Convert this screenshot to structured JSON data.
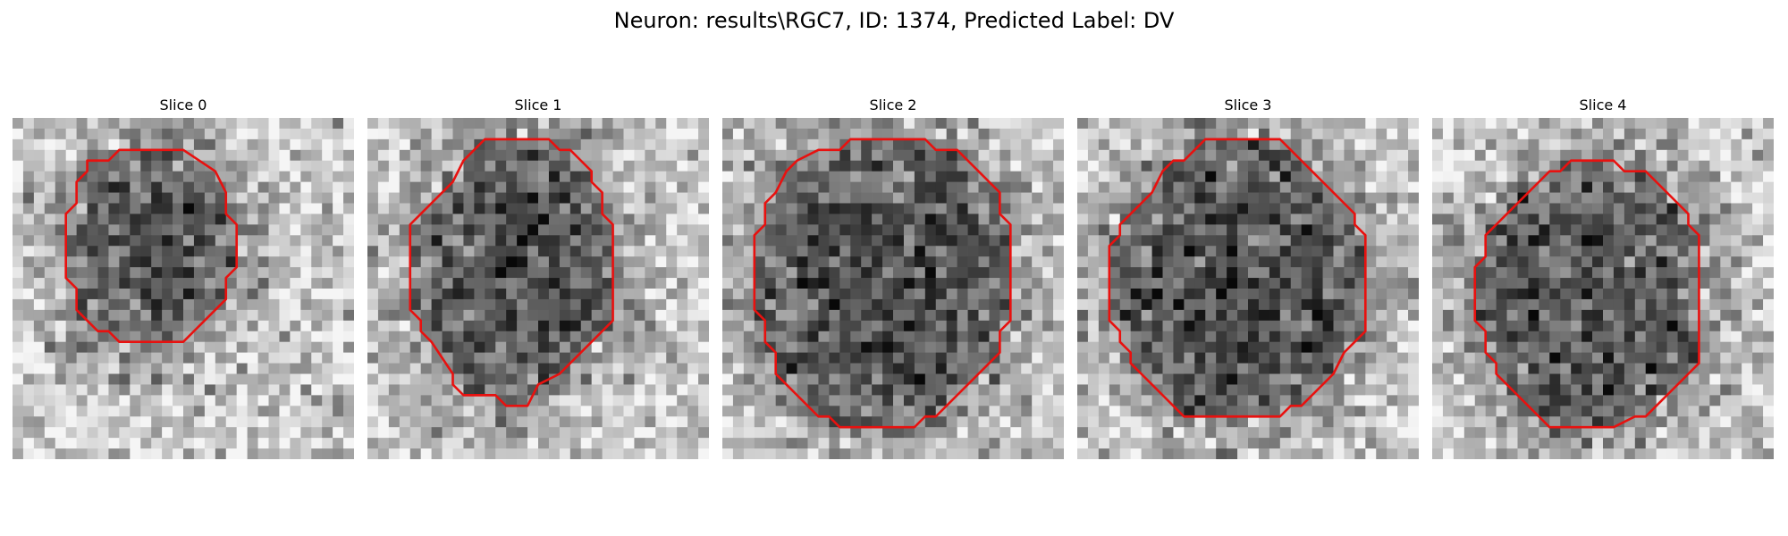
{
  "figure": {
    "title": "Neuron: results\\RGC7, ID: 1374, Predicted Label: DV"
  },
  "colors": {
    "background": "#ffffff",
    "contour": "#e8110f"
  },
  "image_grid_cells": 32,
  "panels": [
    {
      "title": "Slice 0",
      "contour_points": [
        [
          10,
          3
        ],
        [
          16,
          3
        ],
        [
          19,
          5
        ],
        [
          20,
          7
        ],
        [
          20,
          9
        ],
        [
          21,
          10
        ],
        [
          21,
          14
        ],
        [
          20,
          15
        ],
        [
          20,
          17
        ],
        [
          17,
          20
        ],
        [
          16,
          21
        ],
        [
          10,
          21
        ],
        [
          9,
          20
        ],
        [
          8,
          20
        ],
        [
          7,
          19
        ],
        [
          6,
          18
        ],
        [
          6,
          16
        ],
        [
          5,
          15
        ],
        [
          5,
          9
        ],
        [
          6,
          8
        ],
        [
          6,
          6
        ],
        [
          7,
          5
        ],
        [
          7,
          4
        ],
        [
          9,
          4
        ]
      ],
      "seed": 11
    },
    {
      "title": "Slice 1",
      "contour_points": [
        [
          11,
          2
        ],
        [
          17,
          2
        ],
        [
          18,
          3
        ],
        [
          19,
          3
        ],
        [
          20,
          4
        ],
        [
          21,
          5
        ],
        [
          21,
          6
        ],
        [
          22,
          7
        ],
        [
          22,
          9
        ],
        [
          23,
          10
        ],
        [
          23,
          19
        ],
        [
          22,
          20
        ],
        [
          21,
          21
        ],
        [
          19,
          23
        ],
        [
          18,
          24
        ],
        [
          16,
          25
        ],
        [
          15,
          27
        ],
        [
          13,
          27
        ],
        [
          12,
          26
        ],
        [
          9,
          26
        ],
        [
          8,
          25
        ],
        [
          8,
          24
        ],
        [
          6,
          21
        ],
        [
          5,
          20
        ],
        [
          5,
          19
        ],
        [
          4,
          18
        ],
        [
          4,
          10
        ],
        [
          5,
          9
        ],
        [
          6,
          8
        ],
        [
          7,
          7
        ],
        [
          8,
          6
        ],
        [
          9,
          4
        ],
        [
          10,
          3
        ]
      ],
      "seed": 23
    },
    {
      "title": "Slice 2",
      "contour_points": [
        [
          12,
          2
        ],
        [
          19,
          2
        ],
        [
          20,
          3
        ],
        [
          22,
          3
        ],
        [
          23,
          4
        ],
        [
          24,
          5
        ],
        [
          25,
          6
        ],
        [
          26,
          7
        ],
        [
          26,
          9
        ],
        [
          27,
          10
        ],
        [
          27,
          19
        ],
        [
          26,
          20
        ],
        [
          26,
          22
        ],
        [
          25,
          23
        ],
        [
          23,
          25
        ],
        [
          22,
          26
        ],
        [
          21,
          27
        ],
        [
          20,
          28
        ],
        [
          19,
          28
        ],
        [
          18,
          29
        ],
        [
          11,
          29
        ],
        [
          10,
          28
        ],
        [
          9,
          28
        ],
        [
          8,
          27
        ],
        [
          7,
          26
        ],
        [
          6,
          25
        ],
        [
          5,
          24
        ],
        [
          5,
          22
        ],
        [
          4,
          21
        ],
        [
          4,
          19
        ],
        [
          3,
          18
        ],
        [
          3,
          11
        ],
        [
          4,
          10
        ],
        [
          4,
          8
        ],
        [
          5,
          7
        ],
        [
          6,
          5
        ],
        [
          7,
          4
        ],
        [
          9,
          3
        ],
        [
          11,
          3
        ]
      ],
      "seed": 37
    },
    {
      "title": "Slice 3",
      "contour_points": [
        [
          12,
          2
        ],
        [
          19,
          2
        ],
        [
          20,
          3
        ],
        [
          21,
          4
        ],
        [
          22,
          5
        ],
        [
          23,
          6
        ],
        [
          24,
          7
        ],
        [
          25,
          8
        ],
        [
          26,
          9
        ],
        [
          26,
          10
        ],
        [
          27,
          11
        ],
        [
          27,
          20
        ],
        [
          26,
          21
        ],
        [
          25,
          22
        ],
        [
          24,
          24
        ],
        [
          23,
          25
        ],
        [
          22,
          26
        ],
        [
          21,
          27
        ],
        [
          20,
          27
        ],
        [
          19,
          28
        ],
        [
          10,
          28
        ],
        [
          9,
          27
        ],
        [
          8,
          26
        ],
        [
          7,
          25
        ],
        [
          6,
          24
        ],
        [
          5,
          23
        ],
        [
          5,
          22
        ],
        [
          4,
          21
        ],
        [
          4,
          20
        ],
        [
          3,
          19
        ],
        [
          3,
          12
        ],
        [
          4,
          11
        ],
        [
          4,
          10
        ],
        [
          6,
          8
        ],
        [
          7,
          7
        ],
        [
          8,
          5
        ],
        [
          9,
          4
        ],
        [
          10,
          4
        ],
        [
          11,
          3
        ]
      ],
      "seed": 53
    },
    {
      "title": "Slice 4",
      "contour_points": [
        [
          13,
          4
        ],
        [
          17,
          4
        ],
        [
          18,
          5
        ],
        [
          20,
          5
        ],
        [
          21,
          6
        ],
        [
          22,
          7
        ],
        [
          23,
          8
        ],
        [
          24,
          9
        ],
        [
          24,
          10
        ],
        [
          25,
          11
        ],
        [
          25,
          23
        ],
        [
          24,
          24
        ],
        [
          23,
          25
        ],
        [
          22,
          26
        ],
        [
          21,
          27
        ],
        [
          20,
          28
        ],
        [
          19,
          28
        ],
        [
          17,
          29
        ],
        [
          11,
          29
        ],
        [
          10,
          28
        ],
        [
          9,
          27
        ],
        [
          8,
          26
        ],
        [
          7,
          25
        ],
        [
          6,
          24
        ],
        [
          6,
          23
        ],
        [
          5,
          22
        ],
        [
          5,
          20
        ],
        [
          4,
          19
        ],
        [
          4,
          14
        ],
        [
          5,
          13
        ],
        [
          5,
          11
        ],
        [
          6,
          10
        ],
        [
          7,
          9
        ],
        [
          8,
          8
        ],
        [
          9,
          7
        ],
        [
          10,
          6
        ],
        [
          11,
          5
        ],
        [
          12,
          5
        ]
      ],
      "seed": 71
    }
  ]
}
